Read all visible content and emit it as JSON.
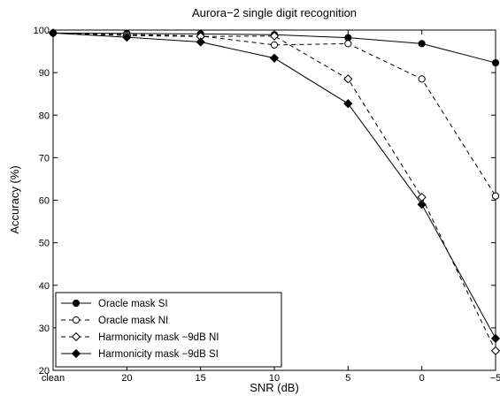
{
  "chart_data": {
    "type": "line",
    "title": "Aurora−2 single digit recognition",
    "xlabel": "SNR (dB)",
    "ylabel": "Accuracy (%)",
    "categories": [
      "clean",
      "20",
      "15",
      "10",
      "5",
      "0",
      "−5"
    ],
    "ylim": [
      20,
      100
    ],
    "yticks": [
      "20",
      "30",
      "40",
      "50",
      "60",
      "70",
      "80",
      "90",
      "100"
    ],
    "grid": false,
    "legend_position": "bottom-left",
    "series": [
      {
        "name": "Oracle mask SI",
        "values": [
          99.3,
          99.2,
          99.1,
          98.9,
          98.2,
          96.8,
          92.3
        ],
        "style": "solid",
        "marker": "circle-filled",
        "color": "#000000"
      },
      {
        "name": "Oracle mask NI",
        "values": [
          99.3,
          99.0,
          98.6,
          96.5,
          96.8,
          88.5,
          61.0
        ],
        "style": "dashed",
        "marker": "circle-open",
        "color": "#000000"
      },
      {
        "name": "Harmonicity mask −9dB NI",
        "values": [
          99.3,
          98.7,
          98.5,
          98.6,
          88.5,
          60.7,
          24.6
        ],
        "style": "dashed",
        "marker": "diamond-open",
        "color": "#000000"
      },
      {
        "name": "Harmonicity mask −9dB SI",
        "values": [
          99.3,
          98.3,
          97.2,
          93.4,
          82.7,
          59.0,
          27.5
        ],
        "style": "solid",
        "marker": "diamond-filled",
        "color": "#000000"
      }
    ]
  }
}
